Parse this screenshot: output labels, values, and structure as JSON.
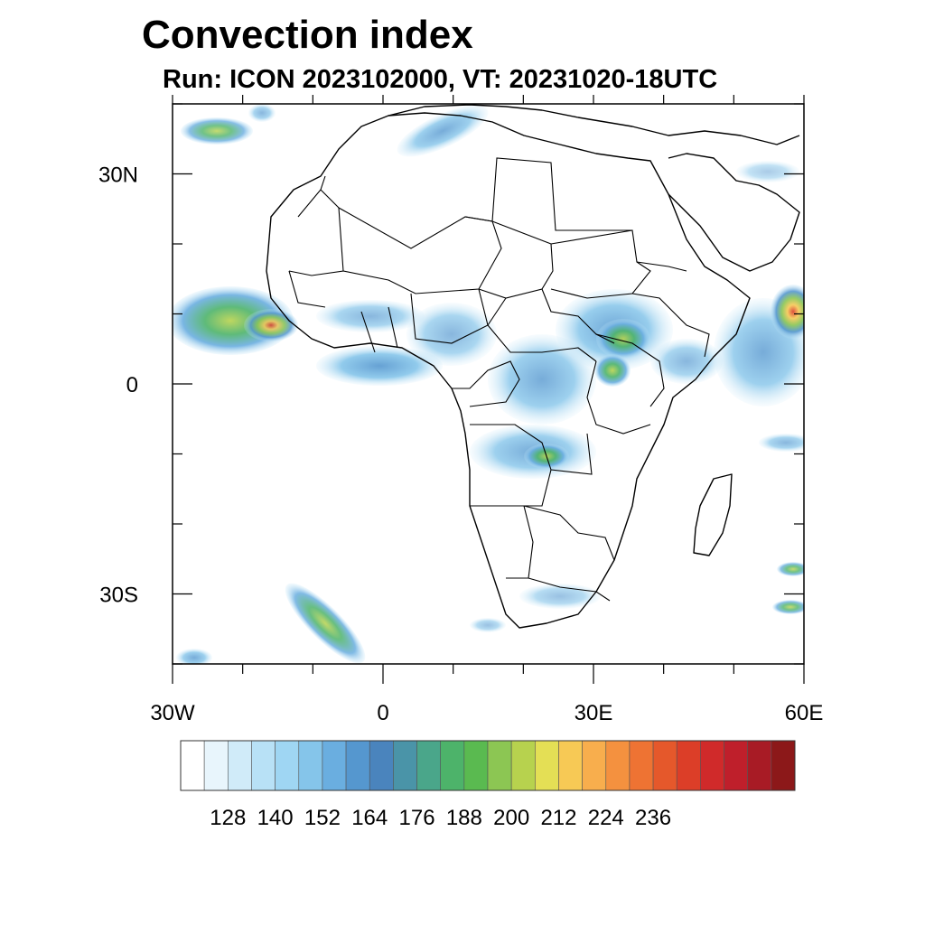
{
  "title": "Convection index",
  "subtitle": "Run: ICON 2023102000,  VT: 20231020-18UTC",
  "map": {
    "lon_range": [
      -30,
      60
    ],
    "lat_range": [
      -40,
      40
    ],
    "lat_ticks": [
      {
        "value": 30,
        "label": "30N"
      },
      {
        "value": 0,
        "label": "0"
      },
      {
        "value": -30,
        "label": "30S"
      }
    ],
    "lon_ticks": [
      {
        "value": -30,
        "label": "30W"
      },
      {
        "value": 0,
        "label": "0"
      },
      {
        "value": 30,
        "label": "30E"
      },
      {
        "value": 60,
        "label": "60E"
      }
    ]
  },
  "colorbar": {
    "colors": [
      "#ffffff",
      "#e8f5fc",
      "#d0ebf9",
      "#b8e1f6",
      "#9fd6f3",
      "#85c5ea",
      "#6aaee0",
      "#5597cf",
      "#4a84bd",
      "#4a94a8",
      "#4aa68a",
      "#4db36a",
      "#5aba50",
      "#8cc653",
      "#b7d24e",
      "#e4df55",
      "#f7c955",
      "#f8ae4d",
      "#f4913f",
      "#ee7333",
      "#e5582b",
      "#dc3e28",
      "#d02a2a",
      "#bf1f2b",
      "#a81b25",
      "#8c1819"
    ],
    "labels": [
      "128",
      "140",
      "152",
      "164",
      "176",
      "188",
      "200",
      "212",
      "224",
      "236"
    ]
  }
}
